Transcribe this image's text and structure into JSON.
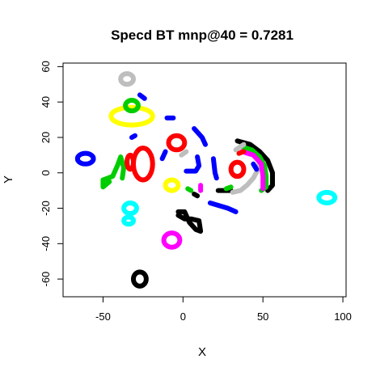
{
  "chart_data": {
    "type": "scatter",
    "title": "Specd BT mnp@40 = 0.7281",
    "xlabel": "X",
    "ylabel": "Y",
    "xlim": [
      -75,
      102
    ],
    "ylim": [
      -70,
      62
    ],
    "xticks": [
      -50,
      0,
      50,
      100
    ],
    "xtick_labels": [
      "-50",
      "0",
      "50",
      "100"
    ],
    "yticks": [
      -60,
      -40,
      -20,
      0,
      20,
      40,
      60
    ],
    "ytick_labels": [
      "-60",
      "-40",
      "-20",
      "0",
      "20",
      "40",
      "60"
    ],
    "grid": false,
    "legend": "none",
    "clusters": [
      {
        "color": "#bebebe",
        "shape": "ring",
        "cx": -35,
        "cy": 53,
        "rx": 4,
        "ry": 3
      },
      {
        "color": "#ffff00",
        "shape": "ring",
        "cx": -32,
        "cy": 32,
        "rx": 13,
        "ry": 5
      },
      {
        "color": "#00cd00",
        "shape": "ring",
        "cx": -32,
        "cy": 38,
        "rx": 4,
        "ry": 3
      },
      {
        "color": "#0000ff",
        "shape": "path",
        "points": [
          [
            -27,
            44
          ],
          [
            -24,
            42
          ]
        ]
      },
      {
        "color": "#0000ff",
        "shape": "ring",
        "cx": -61,
        "cy": 8,
        "rx": 5,
        "ry": 3
      },
      {
        "color": "#00cd00",
        "shape": "path",
        "points": [
          [
            -38,
            -3
          ],
          [
            -37,
            3
          ],
          [
            -39,
            9
          ],
          [
            -41,
            4
          ],
          [
            -44,
            -2
          ],
          [
            -50,
            -4
          ],
          [
            -50,
            -8
          ],
          [
            -46,
            -5
          ]
        ]
      },
      {
        "color": "#ff0000",
        "shape": "ring",
        "cx": -25,
        "cy": 5,
        "rx": 6,
        "ry": 9
      },
      {
        "color": "#ff0000",
        "shape": "ring",
        "cx": -33,
        "cy": 6,
        "rx": 2,
        "ry": 4
      },
      {
        "color": "#0000ff",
        "shape": "path",
        "points": [
          [
            -32,
            20
          ],
          [
            -30,
            21
          ]
        ]
      },
      {
        "color": "#00ffff",
        "shape": "ring",
        "cx": -33,
        "cy": -20,
        "rx": 4,
        "ry": 3
      },
      {
        "color": "#00ffff",
        "shape": "ring",
        "cx": -34,
        "cy": -27,
        "rx": 3,
        "ry": 2
      },
      {
        "color": "#ff00ff",
        "shape": "ring",
        "cx": -7,
        "cy": -38,
        "rx": 5,
        "ry": 4
      },
      {
        "color": "#000000",
        "shape": "ring",
        "cx": -27,
        "cy": -60,
        "rx": 4,
        "ry": 4
      },
      {
        "color": "#ff0000",
        "shape": "ring",
        "cx": -4,
        "cy": 17,
        "rx": 5,
        "ry": 4
      },
      {
        "color": "#0000ff",
        "shape": "path",
        "points": [
          [
            -10,
            31
          ],
          [
            -6,
            31
          ]
        ]
      },
      {
        "color": "#0000ff",
        "shape": "path",
        "points": [
          [
            7,
            25
          ],
          [
            12,
            20
          ],
          [
            14,
            16
          ]
        ]
      },
      {
        "color": "#0000ff",
        "shape": "path",
        "points": [
          [
            -13,
            8
          ],
          [
            -11,
            12
          ]
        ]
      },
      {
        "color": "#bebebe",
        "shape": "path",
        "points": [
          [
            -1,
            10
          ],
          [
            2,
            12
          ]
        ]
      },
      {
        "color": "#0000ff",
        "shape": "path",
        "points": [
          [
            9,
            9
          ],
          [
            10,
            4
          ],
          [
            8,
            1
          ],
          [
            2,
            1
          ]
        ]
      },
      {
        "color": "#ffff00",
        "shape": "ring",
        "cx": -7,
        "cy": -7,
        "rx": 4,
        "ry": 3
      },
      {
        "color": "#00cd00",
        "shape": "path",
        "points": [
          [
            3,
            -9
          ],
          [
            5,
            -10
          ]
        ]
      },
      {
        "color": "#000000",
        "shape": "path",
        "points": [
          [
            -3,
            -22
          ],
          [
            1,
            -22
          ],
          [
            4,
            -28
          ],
          [
            8,
            -32
          ],
          [
            11,
            -33
          ],
          [
            10,
            -27
          ],
          [
            5,
            -26
          ],
          [
            1,
            -26
          ],
          [
            -3,
            -24
          ]
        ]
      },
      {
        "color": "#0000ff",
        "shape": "path",
        "points": [
          [
            19,
            8
          ],
          [
            20,
            0
          ],
          [
            21,
            -3
          ]
        ]
      },
      {
        "color": "#0000ff",
        "shape": "path",
        "points": [
          [
            17,
            -17
          ],
          [
            28,
            -20
          ],
          [
            33,
            -22
          ]
        ]
      },
      {
        "color": "#000000",
        "shape": "path",
        "points": [
          [
            22,
            -10
          ],
          [
            30,
            -10
          ]
        ]
      },
      {
        "color": "#00cd00",
        "shape": "path",
        "points": [
          [
            27,
            -9
          ],
          [
            30,
            -8
          ]
        ]
      },
      {
        "color": "#ff0000",
        "shape": "ring",
        "cx": 34,
        "cy": 2,
        "rx": 4,
        "ry": 4
      },
      {
        "color": "#bebebe",
        "shape": "path",
        "points": [
          [
            31,
            -11
          ],
          [
            36,
            -10
          ],
          [
            40,
            -7
          ],
          [
            44,
            -3
          ],
          [
            47,
            2
          ],
          [
            48,
            7
          ]
        ]
      },
      {
        "color": "#000000",
        "shape": "path",
        "points": [
          [
            34,
            18
          ],
          [
            42,
            16
          ],
          [
            48,
            12
          ],
          [
            53,
            7
          ],
          [
            56,
            0
          ],
          [
            56,
            -7
          ],
          [
            53,
            -10
          ]
        ]
      },
      {
        "color": "#00cd00",
        "shape": "path",
        "points": [
          [
            36,
            15
          ],
          [
            43,
            13
          ],
          [
            48,
            9
          ],
          [
            51,
            4
          ],
          [
            52,
            -2
          ],
          [
            52,
            -8
          ],
          [
            49,
            -10
          ]
        ]
      },
      {
        "color": "#ff00ff",
        "shape": "path",
        "points": [
          [
            37,
            12
          ],
          [
            44,
            10
          ],
          [
            49,
            5
          ],
          [
            50,
            -2
          ],
          [
            50,
            -9
          ]
        ]
      },
      {
        "color": "#bebebe",
        "shape": "path",
        "points": [
          [
            33,
            13
          ],
          [
            38,
            16
          ]
        ]
      },
      {
        "color": "#0000ff",
        "shape": "path",
        "points": [
          [
            44,
            5
          ],
          [
            46,
            2
          ]
        ]
      },
      {
        "color": "#00ffff",
        "shape": "ring",
        "cx": 90,
        "cy": -14,
        "rx": 5,
        "ry": 3
      },
      {
        "color": "#ff00ff",
        "shape": "path",
        "points": [
          [
            11,
            -7
          ],
          [
            11,
            -10
          ]
        ]
      },
      {
        "color": "#000000",
        "shape": "path",
        "points": [
          [
            7,
            -12
          ],
          [
            9,
            -13
          ]
        ]
      },
      {
        "color": "#ff0000",
        "shape": "path",
        "points": [
          [
            35,
            11
          ],
          [
            38,
            12
          ]
        ]
      }
    ]
  }
}
